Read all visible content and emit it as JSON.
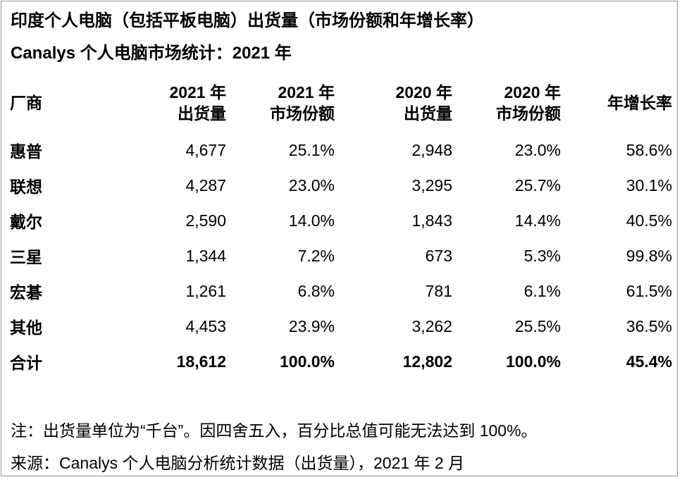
{
  "title": "印度个人电脑（包括平板电脑）出货量（市场份额和年增长率）",
  "subtitle": "Canalys 个人电脑市场统计：2021 年",
  "table": {
    "headers": [
      {
        "l1": "厂商",
        "l2": ""
      },
      {
        "l1": "2021 年",
        "l2": "出货量"
      },
      {
        "l1": "2021 年",
        "l2": "市场份额"
      },
      {
        "l1": "2020 年",
        "l2": "出货量"
      },
      {
        "l1": "2020 年",
        "l2": "市场份额"
      },
      {
        "l1": "年增长率",
        "l2": ""
      }
    ],
    "rows": [
      {
        "vendor": "惠普",
        "c1": "4,677",
        "c2": "25.1%",
        "c3": "2,948",
        "c4": "23.0%",
        "c5": "58.6%"
      },
      {
        "vendor": "联想",
        "c1": "4,287",
        "c2": "23.0%",
        "c3": "3,295",
        "c4": "25.7%",
        "c5": "30.1%"
      },
      {
        "vendor": "戴尔",
        "c1": "2,590",
        "c2": "14.0%",
        "c3": "1,843",
        "c4": "14.4%",
        "c5": "40.5%"
      },
      {
        "vendor": "三星",
        "c1": "1,344",
        "c2": "7.2%",
        "c3": "673",
        "c4": "5.3%",
        "c5": "99.8%"
      },
      {
        "vendor": "宏碁",
        "c1": "1,261",
        "c2": "6.8%",
        "c3": "781",
        "c4": "6.1%",
        "c5": "61.5%"
      },
      {
        "vendor": "其他",
        "c1": "4,453",
        "c2": "23.9%",
        "c3": "3,262",
        "c4": "25.5%",
        "c5": "36.5%"
      }
    ],
    "total": {
      "vendor": "合计",
      "c1": "18,612",
      "c2": "100.0%",
      "c3": "12,802",
      "c4": "100.0%",
      "c5": "45.4%"
    }
  },
  "notes": {
    "note": "注：出货量单位为“千台”。因四舍五入，百分比总值可能无法达到 100%。",
    "source": "来源：Canalys 个人电脑分析统计数据（出货量），2021 年 2 月"
  },
  "colors": {
    "text": "#000000",
    "background": "#ffffff",
    "frame_border": "#909090"
  },
  "chart_data": {
    "type": "table",
    "title": "印度个人电脑（包括平板电脑）出货量（市场份额和年增长率）",
    "subtitle": "Canalys 个人电脑市场统计：2021 年",
    "columns": [
      "厂商",
      "2021 年出货量",
      "2021 年市场份额",
      "2020 年出货量",
      "2020 年市场份额",
      "年增长率"
    ],
    "rows": [
      [
        "惠普",
        4677,
        "25.1%",
        2948,
        "23.0%",
        "58.6%"
      ],
      [
        "联想",
        4287,
        "23.0%",
        3295,
        "25.7%",
        "30.1%"
      ],
      [
        "戴尔",
        2590,
        "14.0%",
        1843,
        "14.4%",
        "40.5%"
      ],
      [
        "三星",
        1344,
        "7.2%",
        673,
        "5.3%",
        "99.8%"
      ],
      [
        "宏碁",
        1261,
        "6.8%",
        781,
        "6.1%",
        "61.5%"
      ],
      [
        "其他",
        4453,
        "23.9%",
        3262,
        "25.5%",
        "36.5%"
      ],
      [
        "合计",
        18612,
        "100.0%",
        12802,
        "100.0%",
        "45.4%"
      ]
    ],
    "units": "千台",
    "source": "Canalys 个人电脑分析统计数据（出货量），2021 年 2 月"
  }
}
